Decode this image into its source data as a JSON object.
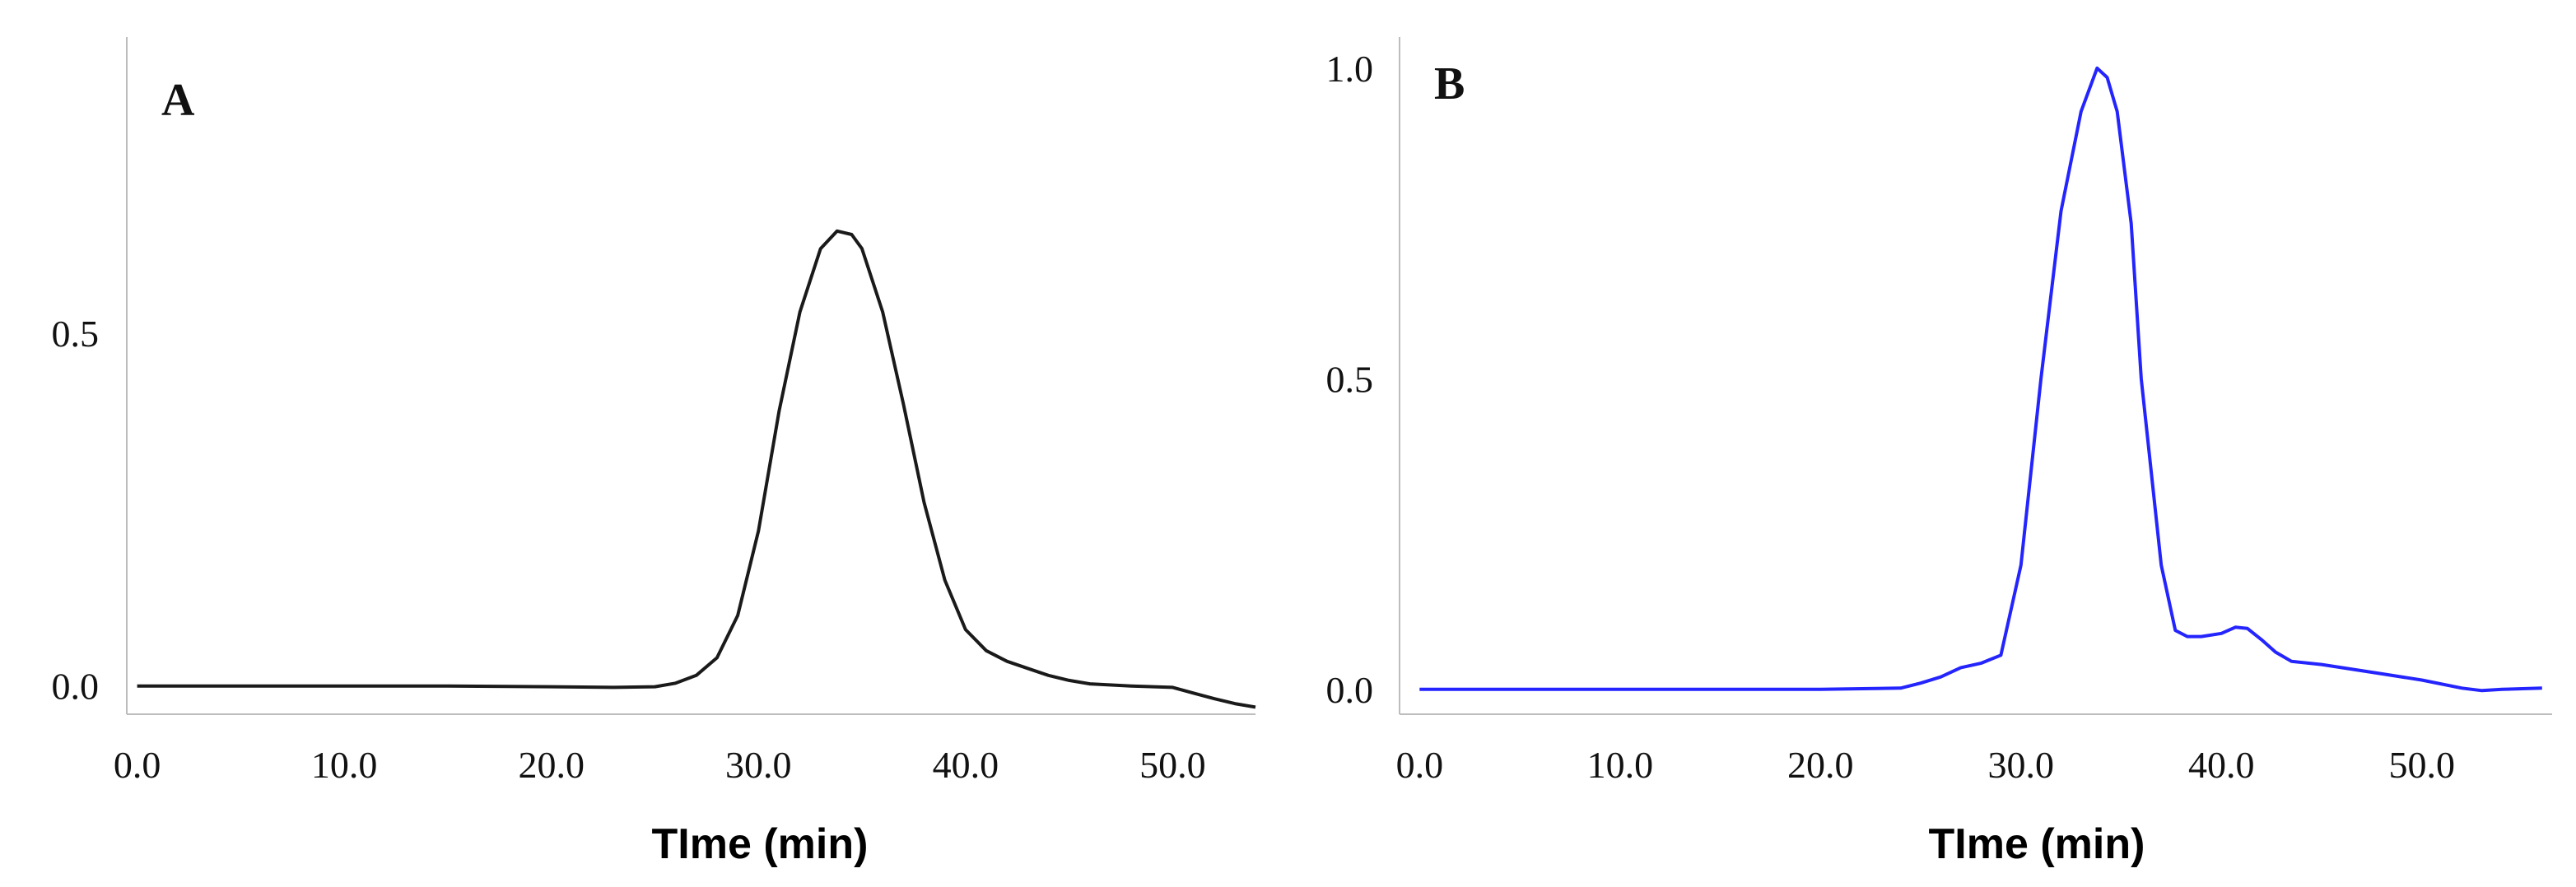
{
  "panels": [
    {
      "panel_label": "A",
      "xlabel": "TIme (min)",
      "x_ticks": [
        "0.0",
        "10.0",
        "20.0",
        "30.0",
        "40.0",
        "50.0"
      ],
      "y_ticks": [
        "0.0",
        "0.5"
      ],
      "line_color": "#1a1a1a"
    },
    {
      "panel_label": "B",
      "xlabel": "TIme (min)",
      "x_ticks": [
        "0.0",
        "10.0",
        "20.0",
        "30.0",
        "40.0",
        "50.0"
      ],
      "y_ticks": [
        "0.0",
        "0.5",
        "1.0"
      ],
      "line_color": "#2424ff"
    }
  ],
  "chart_data": [
    {
      "type": "line",
      "title": "",
      "panel_label": "A",
      "xlabel": "TIme (min)",
      "ylabel": "",
      "xlim": [
        -0.5,
        54
      ],
      "ylim": [
        -0.04,
        0.92
      ],
      "grid": false,
      "series": [
        {
          "color": "#1a1a1a",
          "x": [
            0,
            5,
            10,
            15,
            20,
            23,
            25,
            26,
            27,
            28,
            29,
            30,
            31,
            32,
            33,
            33.8,
            34.5,
            35,
            36,
            37,
            38,
            39,
            40,
            41,
            42,
            43,
            44,
            45,
            46,
            48,
            50,
            51,
            52,
            53,
            54
          ],
          "y": [
            0.0,
            0.0,
            0.0,
            0.0,
            -0.001,
            -0.002,
            -0.001,
            0.004,
            0.015,
            0.04,
            0.1,
            0.22,
            0.39,
            0.53,
            0.62,
            0.645,
            0.64,
            0.62,
            0.53,
            0.4,
            0.26,
            0.15,
            0.08,
            0.05,
            0.035,
            0.025,
            0.015,
            0.008,
            0.003,
            0.0,
            -0.002,
            -0.01,
            -0.018,
            -0.025,
            -0.03
          ]
        }
      ]
    },
    {
      "type": "line",
      "title": "",
      "panel_label": "B",
      "xlabel": "TIme (min)",
      "ylabel": "",
      "xlim": [
        -1,
        56.5
      ],
      "ylim": [
        -0.04,
        1.05
      ],
      "grid": false,
      "series": [
        {
          "color": "#2424ff",
          "x": [
            0,
            5,
            10,
            15,
            20,
            24,
            25,
            26,
            27,
            28,
            29,
            30,
            31,
            32,
            33,
            33.8,
            34.3,
            34.8,
            35.5,
            36,
            37,
            37.7,
            38.3,
            39,
            40,
            40.7,
            41.3,
            42,
            42.7,
            43.5,
            45,
            46,
            48,
            50,
            52,
            53,
            54,
            56
          ],
          "y": [
            0.0,
            0.0,
            0.0,
            0.0,
            0.0,
            0.002,
            0.01,
            0.02,
            0.035,
            0.042,
            0.055,
            0.2,
            0.5,
            0.77,
            0.93,
            1.0,
            0.985,
            0.93,
            0.75,
            0.5,
            0.2,
            0.095,
            0.085,
            0.085,
            0.09,
            0.1,
            0.098,
            0.08,
            0.06,
            0.045,
            0.04,
            0.035,
            0.025,
            0.015,
            0.002,
            -0.002,
            0.0,
            0.002
          ]
        }
      ]
    }
  ]
}
